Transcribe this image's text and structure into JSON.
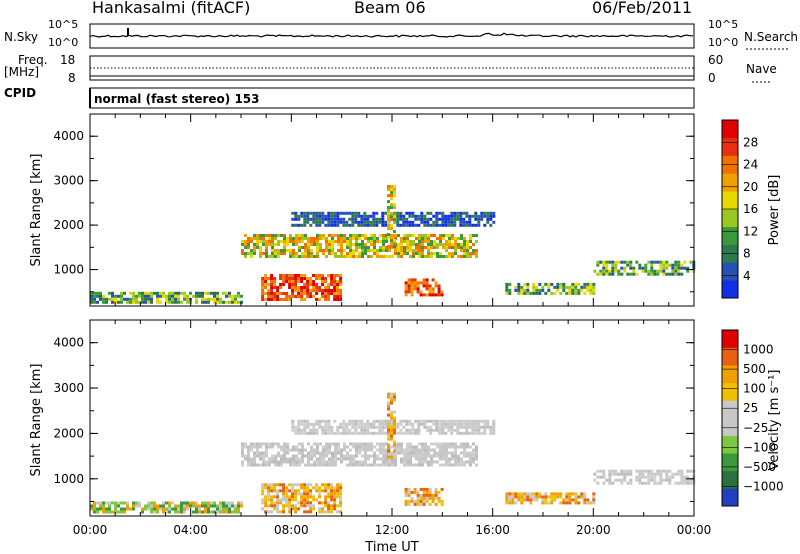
{
  "header": {
    "station": "Hankasalmi (fitACF)",
    "beam": "Beam 06",
    "date": "06/Feb/2011"
  },
  "strip_panels": {
    "nsky_label": "N.Sky",
    "nsearch_label": "N.Search",
    "nsky_tick_top": "10^5",
    "nsky_tick_bottom": "10^0",
    "nsearch_tick_top": "10^5",
    "nsearch_tick_bottom": "10^0",
    "freq_label_1": "Freq.",
    "freq_label_2": "[MHz]",
    "freq_tick_top": "18",
    "freq_tick_bottom": "8",
    "nave_label": "Nave",
    "nave_tick_top": "60",
    "nave_tick_bottom": "0",
    "cpid_label": "CPID",
    "cpid_text": "normal (fast stereo) 153"
  },
  "chart_data": [
    {
      "type": "heatmap",
      "name": "power",
      "ylabel": "Slant Range [km]",
      "xlabel": "Time UT",
      "ylim": [
        180,
        4500
      ],
      "xlim": [
        0,
        24
      ],
      "y_ticks": [
        "1000",
        "2000",
        "3000",
        "4000"
      ],
      "colorbar_label": "Power [dB]",
      "colorbar_ticks": [
        "4",
        "8",
        "12",
        "16",
        "20",
        "24",
        "28"
      ],
      "colorbar_colors": [
        "#1030e8",
        "#2850b0",
        "#2c7a4c",
        "#3a9a3a",
        "#9ac820",
        "#e8d800",
        "#f0a000",
        "#f07000",
        "#e83010",
        "#e00000"
      ],
      "echo_regions": [
        {
          "t0": 6.0,
          "t1": 15.3,
          "r0": 1300,
          "r1": 1800,
          "level": "strong"
        },
        {
          "t0": 6.8,
          "t1": 10.0,
          "r0": 300,
          "r1": 900,
          "level": "very-strong"
        },
        {
          "t0": 12.5,
          "t1": 14.0,
          "r0": 450,
          "r1": 800,
          "level": "very-strong"
        },
        {
          "t0": 0.0,
          "t1": 6.0,
          "r0": 250,
          "r1": 500,
          "level": "medium"
        },
        {
          "t0": 16.5,
          "t1": 20.0,
          "r0": 450,
          "r1": 700,
          "level": "medium"
        },
        {
          "t0": 20.0,
          "t1": 24.0,
          "r0": 900,
          "r1": 1200,
          "level": "medium"
        },
        {
          "t0": 8.0,
          "t1": 16.0,
          "r0": 2000,
          "r1": 2300,
          "level": "weak"
        },
        {
          "t0": 11.8,
          "t1": 12.1,
          "r0": 1500,
          "r1": 2900,
          "level": "strong"
        }
      ]
    },
    {
      "type": "heatmap",
      "name": "velocity",
      "ylabel": "Slant Range [km]",
      "xlabel": "Time UT",
      "ylim": [
        180,
        4500
      ],
      "xlim": [
        0,
        24
      ],
      "y_ticks": [
        "1000",
        "2000",
        "3000",
        "4000"
      ],
      "x_ticks": [
        "00:00",
        "04:00",
        "08:00",
        "12:00",
        "16:00",
        "20:00",
        "00:00"
      ],
      "colorbar_label": "Velocity [m s⁻¹]",
      "colorbar_ticks": [
        "1000",
        "500",
        "100",
        "25",
        "−25",
        "−100",
        "−500",
        "−1000"
      ],
      "colorbar_colors": [
        "#2040c0",
        "#2a7040",
        "#3c9a3c",
        "#7cc840",
        "#c8c8c8",
        "#c8c8c8",
        "#f0c000",
        "#f0a000",
        "#e86010",
        "#e00000"
      ],
      "echo_regions": [
        {
          "t0": 6.0,
          "t1": 15.3,
          "r0": 1300,
          "r1": 1800,
          "level": "grey"
        },
        {
          "t0": 6.8,
          "t1": 10.0,
          "r0": 300,
          "r1": 900,
          "level": "orange"
        },
        {
          "t0": 12.5,
          "t1": 14.0,
          "r0": 450,
          "r1": 800,
          "level": "orange"
        },
        {
          "t0": 0.0,
          "t1": 6.0,
          "r0": 250,
          "r1": 500,
          "level": "mixed"
        },
        {
          "t0": 16.5,
          "t1": 20.0,
          "r0": 450,
          "r1": 700,
          "level": "orange"
        },
        {
          "t0": 20.0,
          "t1": 24.0,
          "r0": 900,
          "r1": 1200,
          "level": "grey"
        },
        {
          "t0": 8.0,
          "t1": 16.0,
          "r0": 2000,
          "r1": 2300,
          "level": "grey"
        },
        {
          "t0": 11.8,
          "t1": 12.1,
          "r0": 1500,
          "r1": 2900,
          "level": "orange"
        }
      ]
    }
  ]
}
